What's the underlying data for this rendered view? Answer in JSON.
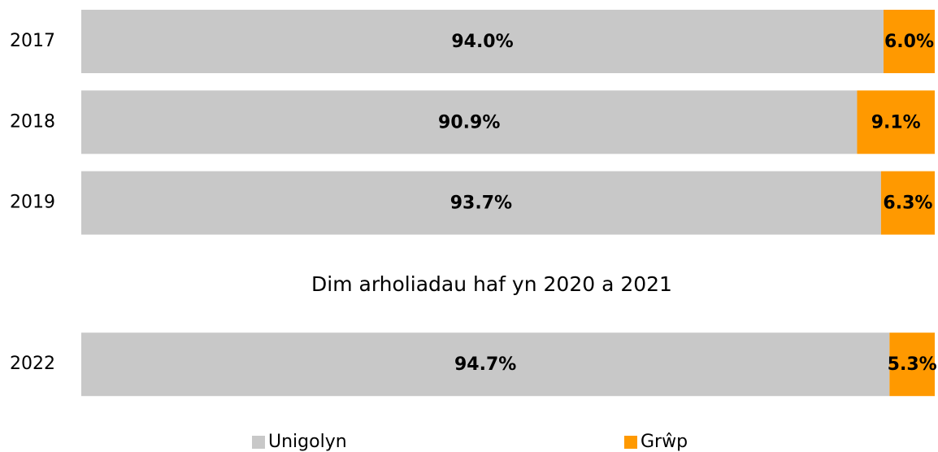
{
  "chart_data": {
    "type": "bar",
    "orientation": "horizontal",
    "stacked": true,
    "annotation": "Dim arholiadau haf yn 2020 a 2021",
    "categories": [
      "2017",
      "2018",
      "2019",
      null,
      "2022"
    ],
    "series": [
      {
        "name": "Unigolyn",
        "color": "#c8c8c8",
        "values": [
          94.0,
          90.9,
          93.7,
          null,
          94.7
        ],
        "value_labels": [
          "94.0%",
          "90.9%",
          "93.7%",
          null,
          "94.7%"
        ]
      },
      {
        "name": "Grŵp",
        "color": "#ff9900",
        "values": [
          6.0,
          9.1,
          6.3,
          null,
          5.3
        ],
        "value_labels": [
          "6.0%",
          "9.1%",
          "6.3%",
          null,
          "5.3%"
        ]
      }
    ],
    "xlim": [
      0,
      100
    ],
    "legend": "bottom"
  }
}
